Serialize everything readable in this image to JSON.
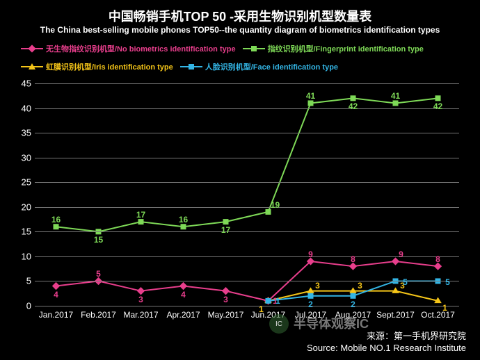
{
  "title_zh": "中国畅销手机TOP 50 -采用生物识别机型数量表",
  "title_en": "The China best-selling mobile phones TOP50--the quantity diagram of biometrics identification types",
  "legend": [
    {
      "label": "无生物指纹识别机型/No biometrics identification type",
      "color": "#e83e8c",
      "marker": "diamond"
    },
    {
      "label": "指纹识别机型/Fingerprint identification type",
      "color": "#7ed957",
      "marker": "square"
    },
    {
      "label": "虹膜识别机型/Iris identification type",
      "color": "#f5c518",
      "marker": "triangle"
    },
    {
      "label": "人脸识别机型/Face identification type",
      "color": "#33b5e5",
      "marker": "square"
    }
  ],
  "chart": {
    "type": "line",
    "background_color": "#000000",
    "grid_color": "#777777",
    "text_color": "#ffffff",
    "title_fontsize_zh": 18,
    "title_fontsize_en": 12,
    "label_fontsize": 13,
    "line_width": 2,
    "marker_size": 8,
    "ylim": [
      0,
      45
    ],
    "ytick_step": 5,
    "yticks": [
      0,
      5,
      10,
      15,
      20,
      25,
      30,
      35,
      40,
      45
    ],
    "categories": [
      "Jan.2017",
      "Feb.2017",
      "Mar.2017",
      "Apr.2017",
      "May.2017",
      "Jun.2017",
      "Jul.2017",
      "Aug.2017",
      "Sept.2017",
      "Oct.2017"
    ],
    "series": [
      {
        "name": "no_biometrics",
        "color": "#e83e8c",
        "marker": "diamond",
        "values": [
          4,
          5,
          3,
          4,
          3,
          1,
          9,
          8,
          9,
          8
        ],
        "label_offsets": [
          [
            0,
            12
          ],
          [
            0,
            -10
          ],
          [
            0,
            12
          ],
          [
            0,
            12
          ],
          [
            0,
            12
          ],
          [
            10,
            0
          ],
          [
            0,
            -10
          ],
          [
            0,
            -10
          ],
          [
            8,
            -10
          ],
          [
            0,
            -10
          ]
        ]
      },
      {
        "name": "fingerprint",
        "color": "#7ed957",
        "marker": "square",
        "values": [
          16,
          15,
          17,
          16,
          17,
          19,
          41,
          42,
          41,
          42
        ],
        "label_offsets": [
          [
            0,
            -10
          ],
          [
            0,
            12
          ],
          [
            0,
            -10
          ],
          [
            0,
            -10
          ],
          [
            0,
            12
          ],
          [
            10,
            -10
          ],
          [
            0,
            -10
          ],
          [
            0,
            12
          ],
          [
            0,
            -10
          ],
          [
            0,
            12
          ]
        ]
      },
      {
        "name": "iris",
        "color": "#f5c518",
        "marker": "triangle",
        "values": [
          null,
          null,
          null,
          null,
          null,
          1,
          3,
          3,
          3,
          1
        ],
        "label_offsets": [
          null,
          null,
          null,
          null,
          null,
          [
            -10,
            12
          ],
          [
            10,
            -8
          ],
          [
            10,
            -8
          ],
          [
            10,
            -8
          ],
          [
            10,
            10
          ]
        ]
      },
      {
        "name": "face",
        "color": "#33b5e5",
        "marker": "square",
        "values": [
          null,
          null,
          null,
          null,
          null,
          1,
          2,
          2,
          5,
          5
        ],
        "label_offsets": [
          null,
          null,
          null,
          null,
          null,
          [
            14,
            0
          ],
          [
            0,
            12
          ],
          [
            0,
            12
          ],
          [
            14,
            2
          ],
          [
            14,
            2
          ]
        ]
      }
    ]
  },
  "source_zh": "来源：第一手机界研究院",
  "source_en": "Source: Mobile NO.1 Research Institute",
  "watermark_text": "半导体观察IC",
  "watermark_badge": "IC"
}
